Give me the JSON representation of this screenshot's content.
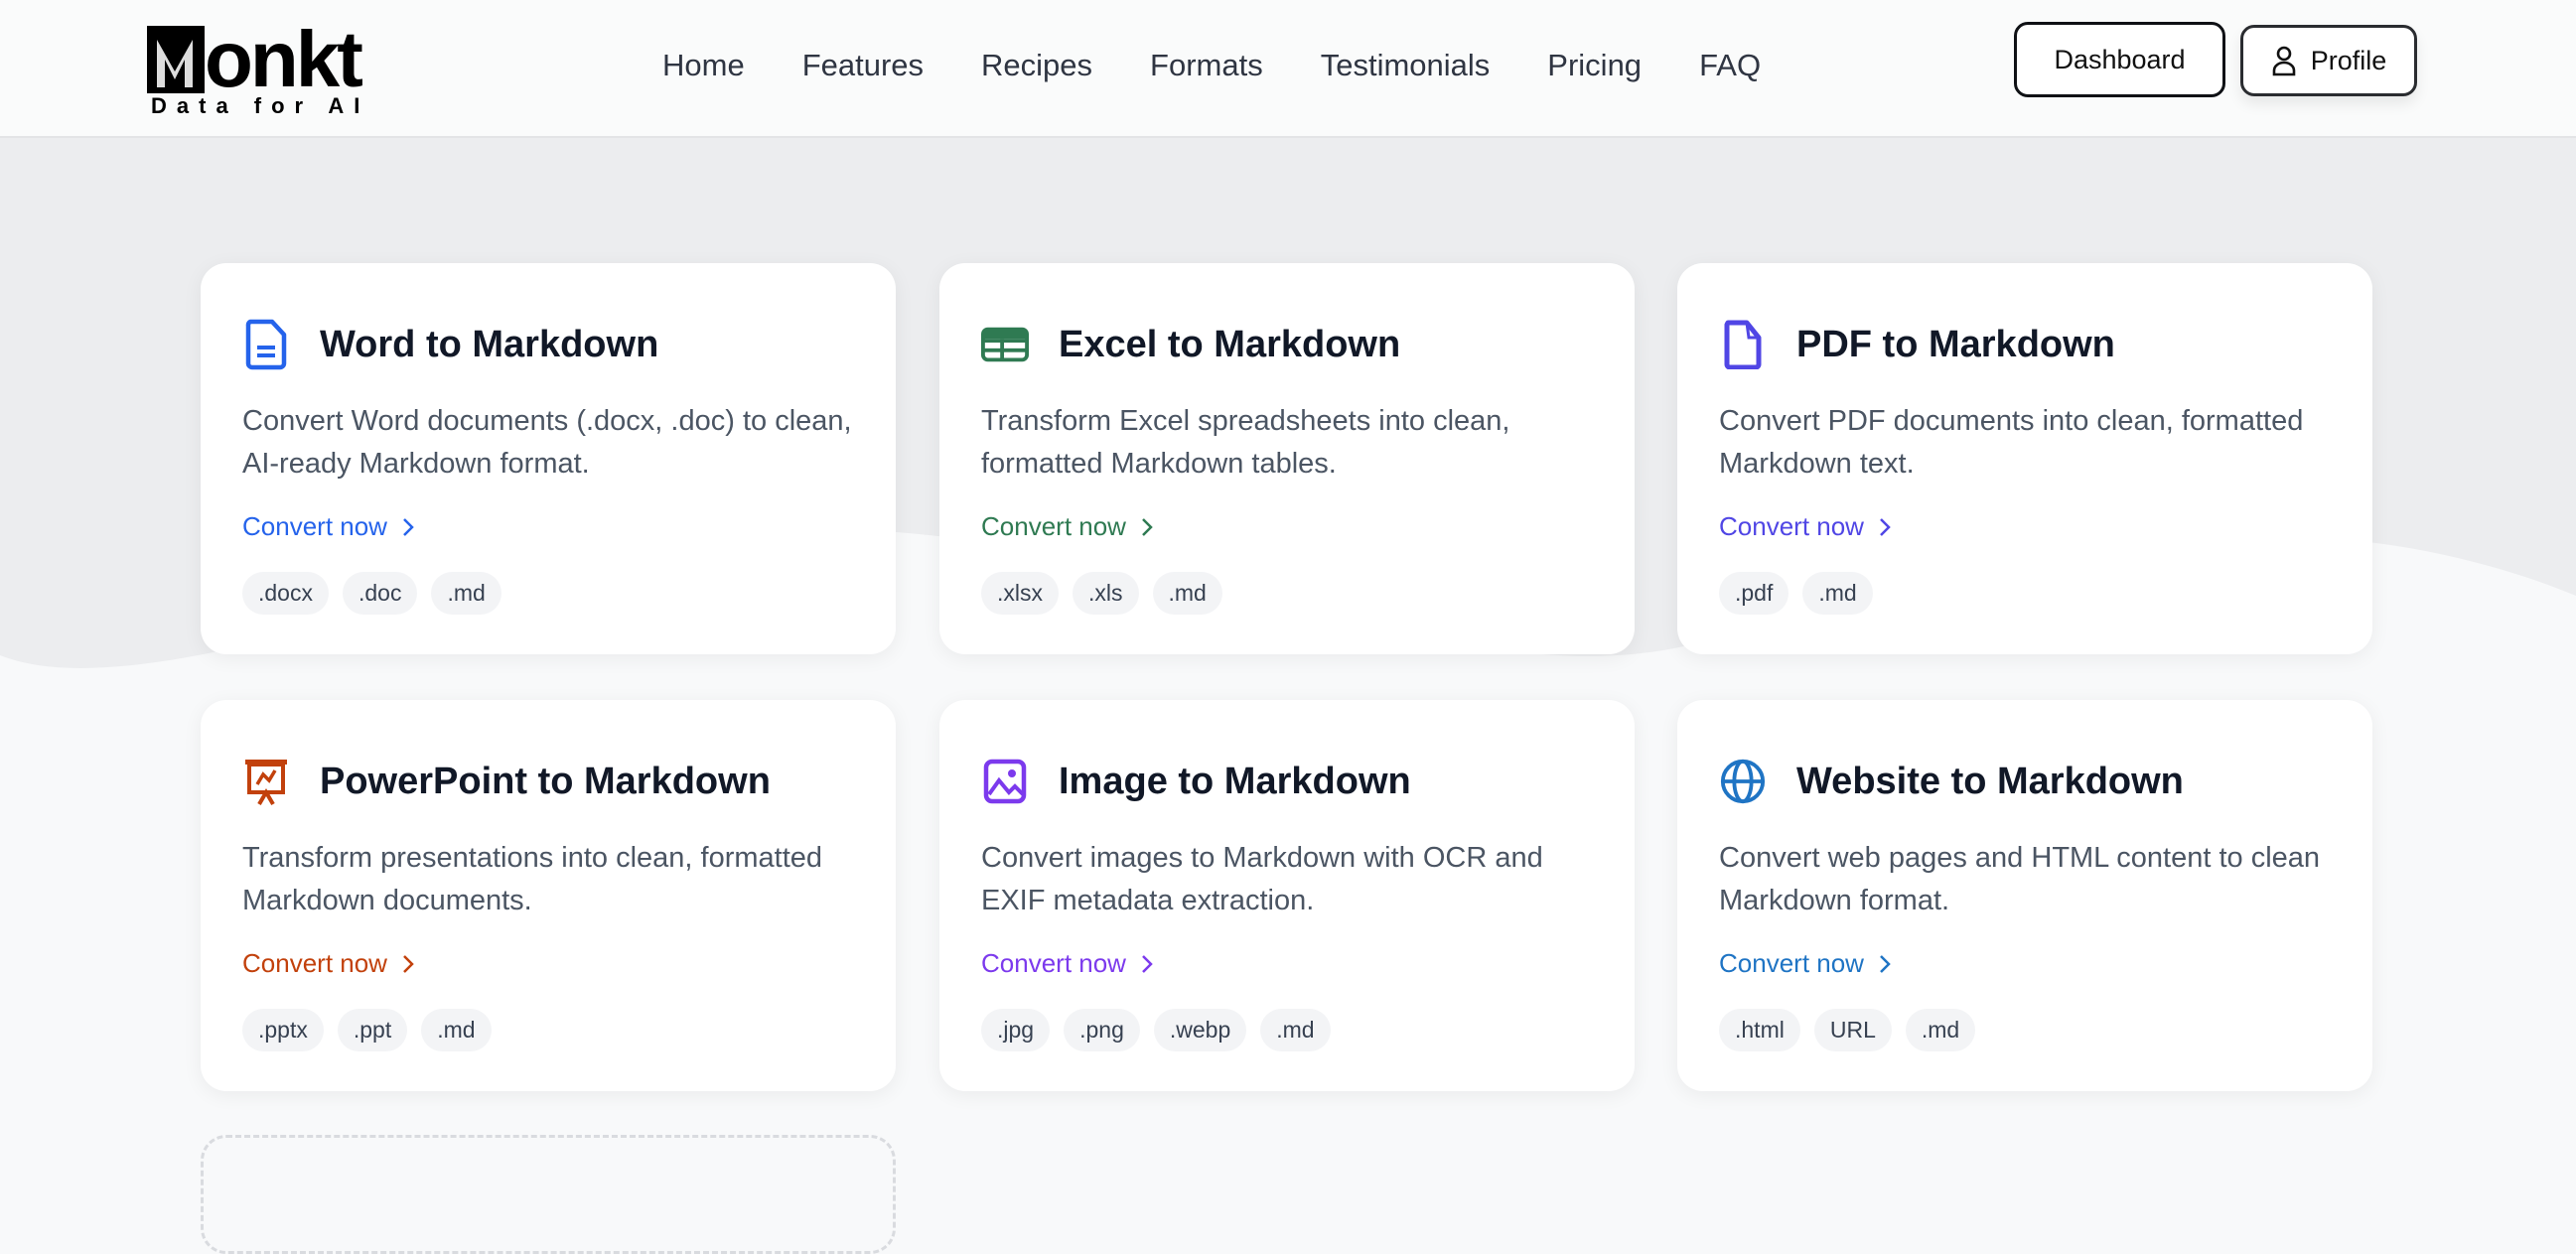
{
  "brand": {
    "name": "onkt",
    "tagline": "Data for AI"
  },
  "nav": {
    "items": [
      "Home",
      "Features",
      "Recipes",
      "Formats",
      "Testimonials",
      "Pricing",
      "FAQ"
    ]
  },
  "header_buttons": {
    "dashboard": "Dashboard",
    "profile": "Profile",
    "profile_icon": "user-icon"
  },
  "cards": [
    {
      "title": "Word to Markdown",
      "desc": "Convert Word documents (.docx, .doc) to clean, AI-ready Markdown format.",
      "cta": "Convert now",
      "tags": [
        ".docx",
        ".doc",
        ".md"
      ],
      "color": "#2563eb",
      "icon": "file-text-icon"
    },
    {
      "title": "Excel to Markdown",
      "desc": "Transform Excel spreadsheets into clean, formatted Markdown tables.",
      "cta": "Convert now",
      "tags": [
        ".xlsx",
        ".xls",
        ".md"
      ],
      "color": "#2f7a52",
      "icon": "table-icon"
    },
    {
      "title": "PDF to Markdown",
      "desc": "Convert PDF documents into clean, formatted Markdown text.",
      "cta": "Convert now",
      "tags": [
        ".pdf",
        ".md"
      ],
      "color": "#5046e5",
      "icon": "file-icon"
    },
    {
      "title": "PowerPoint to Markdown",
      "desc": "Transform presentations into clean, formatted Markdown documents.",
      "cta": "Convert now",
      "tags": [
        ".pptx",
        ".ppt",
        ".md"
      ],
      "color": "#c2410c",
      "icon": "presentation-icon"
    },
    {
      "title": "Image to Markdown",
      "desc": "Convert images to Markdown with OCR and EXIF metadata extraction.",
      "cta": "Convert now",
      "tags": [
        ".jpg",
        ".png",
        ".webp",
        ".md"
      ],
      "color": "#7c3aed",
      "icon": "image-icon"
    },
    {
      "title": "Website to Markdown",
      "desc": "Convert web pages and HTML content to clean Markdown format.",
      "cta": "Convert now",
      "tags": [
        ".html",
        "URL",
        ".md"
      ],
      "color": "#1f74c4",
      "icon": "globe-icon"
    }
  ]
}
